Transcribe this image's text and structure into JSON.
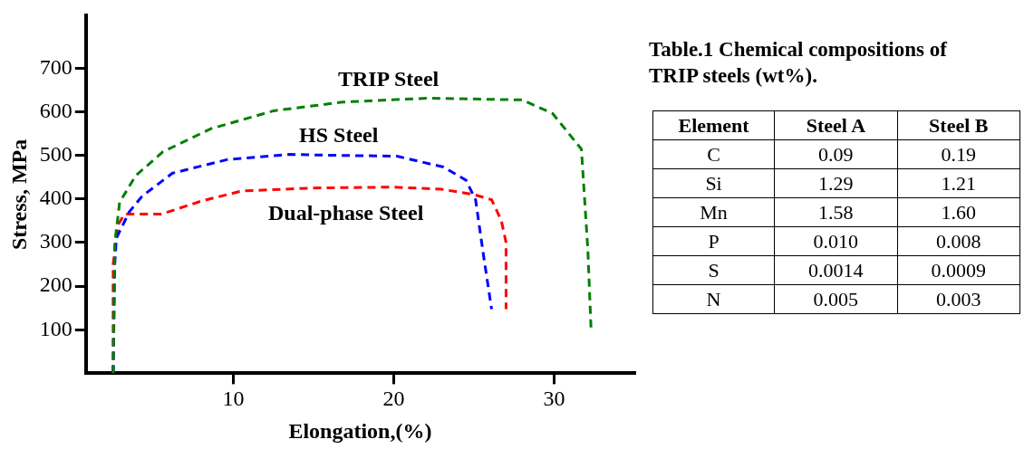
{
  "chart_data": [
    {
      "type": "line",
      "xlabel": "Elongation,(%)",
      "ylabel": "Stress, MPa",
      "xlim": [
        0.8,
        35
      ],
      "xticks": [
        10,
        20,
        30
      ],
      "ylim": [
        0,
        820
      ],
      "yticks": [
        100,
        200,
        300,
        400,
        500,
        600,
        700
      ],
      "grid": false,
      "legend": false,
      "marker": "none",
      "line_style": "dashed",
      "series": [
        {
          "name": "TRIP Steel",
          "color": "#008000",
          "x": [
            2.5,
            2.6,
            2.8,
            2.9,
            3.9,
            5.6,
            8.6,
            12.5,
            16.8,
            22.1,
            28,
            29.9,
            31.7,
            32.1,
            32.3
          ],
          "values": [
            0,
            300,
            360,
            392,
            453,
            508,
            561,
            602,
            622,
            631,
            627,
            596,
            514,
            284,
            102
          ]
        },
        {
          "name": "HS Steel",
          "color": "#0000ff",
          "x": [
            2.5,
            2.6,
            2.7,
            3.5,
            4.3,
            6.2,
            9.6,
            13.5,
            16.2,
            20.2,
            23.1,
            24.5,
            25.1,
            25.6,
            26.1
          ],
          "values": [
            0,
            250,
            310,
            370,
            406,
            459,
            490,
            502,
            500,
            498,
            473,
            443,
            398,
            269,
            147
          ]
        },
        {
          "name": "Dual-phase Steel",
          "color": "#ff0000",
          "x": [
            2.5,
            2.5,
            2.8,
            3.2,
            5.5,
            8,
            10.5,
            15,
            20,
            23,
            25,
            26.1,
            26.7,
            27,
            27
          ],
          "values": [
            0,
            250,
            340,
            365,
            365,
            395,
            418,
            425,
            427,
            422,
            410,
            398,
            351,
            300,
            147
          ]
        }
      ]
    },
    {
      "type": "other",
      "title": "Table.1  Chemical compositions of TRIP steels (wt%).",
      "categories": [
        "Element",
        "Steel A",
        "Steel B"
      ],
      "y_categories": [
        "C",
        "Si",
        "Mn",
        "P",
        "S",
        "N"
      ],
      "cell_labels": [
        [
          "0.09",
          "0.19"
        ],
        [
          "1.29",
          "1.21"
        ],
        [
          "1.58",
          "1.60"
        ],
        [
          "0.010",
          "0.008"
        ],
        [
          "0.0014",
          "0.0009"
        ],
        [
          "0.005",
          "0.003"
        ]
      ]
    }
  ]
}
